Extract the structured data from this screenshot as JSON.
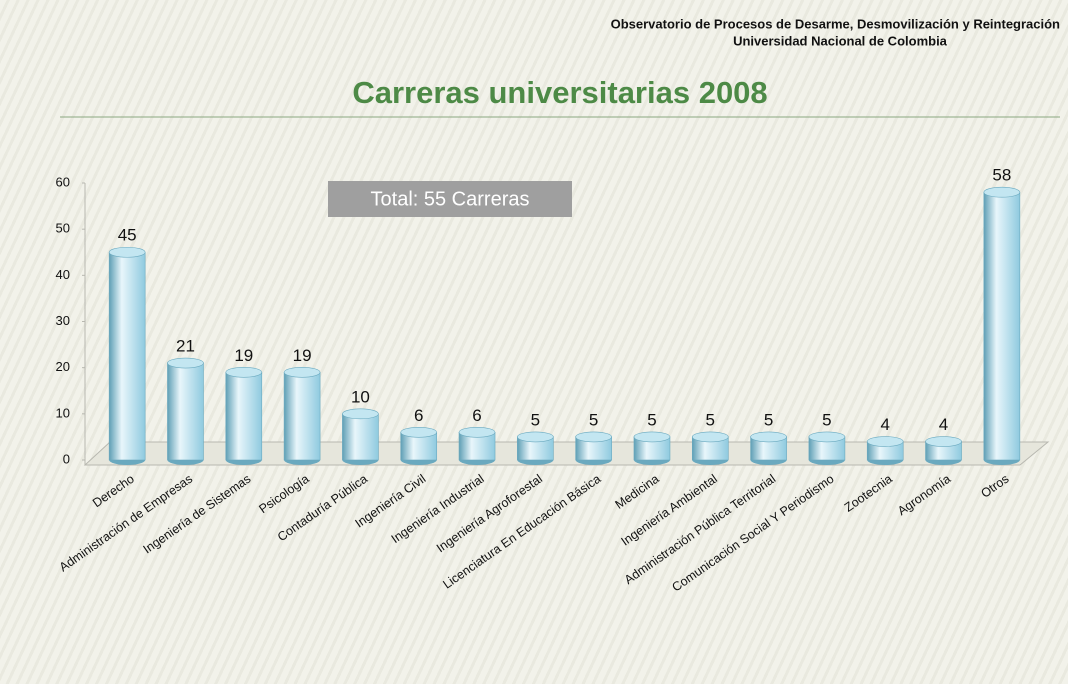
{
  "header": {
    "line1": "Observatorio de Procesos de Desarme, Desmovilización y Reintegración",
    "line2": "Universidad Nacional de Colombia"
  },
  "chart_data": {
    "type": "bar",
    "title": "Carreras universitarias 2008",
    "annotation": "Total: 55 Carreras",
    "categories": [
      "Derecho",
      "Administración de Empresas",
      "Ingeniería de Sistemas",
      "Psicología",
      "Contaduría Pública",
      "Ingeniería Civil",
      "Ingeniería Industrial",
      "Ingeniería Agroforestal",
      "Licenciatura En Educación Básica",
      "Medicina",
      "Ingeniería Ambiental",
      "Administración Pública Territorial",
      "Comunicación Social Y Periodismo",
      "Zootecnia",
      "Agronomía",
      "Otros"
    ],
    "values": [
      45,
      21,
      19,
      19,
      10,
      6,
      6,
      5,
      5,
      5,
      5,
      5,
      5,
      4,
      4,
      58
    ],
    "color": "#8fcadf",
    "ylim": [
      0,
      60
    ],
    "yticks": [
      0,
      10,
      20,
      30,
      40,
      50,
      60
    ],
    "grid": false
  }
}
